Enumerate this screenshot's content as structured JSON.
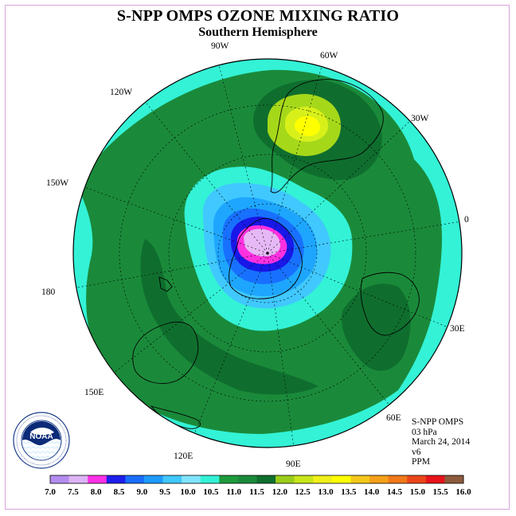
{
  "header": {
    "title": "S-NPP OMPS OZONE MIXING RATIO",
    "subtitle": "Southern Hemisphere"
  },
  "map": {
    "projection": "south-polar-stereographic",
    "longitude_labels": [
      {
        "id": "lon-90w",
        "text": "90W"
      },
      {
        "id": "lon-60w",
        "text": "60W"
      },
      {
        "id": "lon-30w",
        "text": "30W"
      },
      {
        "id": "lon-0",
        "text": "0"
      },
      {
        "id": "lon-30e",
        "text": "30E"
      },
      {
        "id": "lon-60e",
        "text": "60E"
      },
      {
        "id": "lon-90e",
        "text": "90E"
      },
      {
        "id": "lon-120e",
        "text": "120E"
      },
      {
        "id": "lon-150e",
        "text": "150E"
      },
      {
        "id": "lon-180",
        "text": "180"
      },
      {
        "id": "lon-150w",
        "text": "150W"
      },
      {
        "id": "lon-120w",
        "text": "120W"
      }
    ],
    "colors": {
      "background_field": "#1a8a3a",
      "dark_band": "#0f6e2e",
      "cyan": "#33f2d6",
      "light_blue": "#40c8ff",
      "sky_blue": "#1ea6ff",
      "blue": "#1870ff",
      "deep_blue": "#1818e8",
      "magenta": "#ff30e0",
      "lavender": "#e6b8f5",
      "yellow_green": "#a6d81a",
      "lime": "#d8f01a",
      "yellow": "#ffff00"
    }
  },
  "info": {
    "instrument": "S-NPP OMPS",
    "level": "03 hPa",
    "date": "March 24, 2014",
    "version": "v6",
    "units": "PPM"
  },
  "colorbar": {
    "colors": [
      "#b48cf0",
      "#dcb4f5",
      "#ff32e6",
      "#1e1eeb",
      "#1a6eff",
      "#1e9bff",
      "#40c8ff",
      "#80e4ff",
      "#33f2d6",
      "#1e9a3c",
      "#1a8a3a",
      "#0f6e2e",
      "#9acd1a",
      "#c8e61a",
      "#f0f01a",
      "#ffff00",
      "#f5c81a",
      "#f5a01a",
      "#f0781a",
      "#eb461a",
      "#e6141a",
      "#8c5a3c"
    ],
    "labels": [
      "7.0",
      "7.5",
      "8.0",
      "8.5",
      "9.0",
      "9.5",
      "10.0",
      "10.5",
      "11.0",
      "11.5",
      "12.0",
      "12.5",
      "13.0",
      "13.5",
      "14.0",
      "14.5",
      "15.0",
      "15.5",
      "16.0"
    ]
  }
}
